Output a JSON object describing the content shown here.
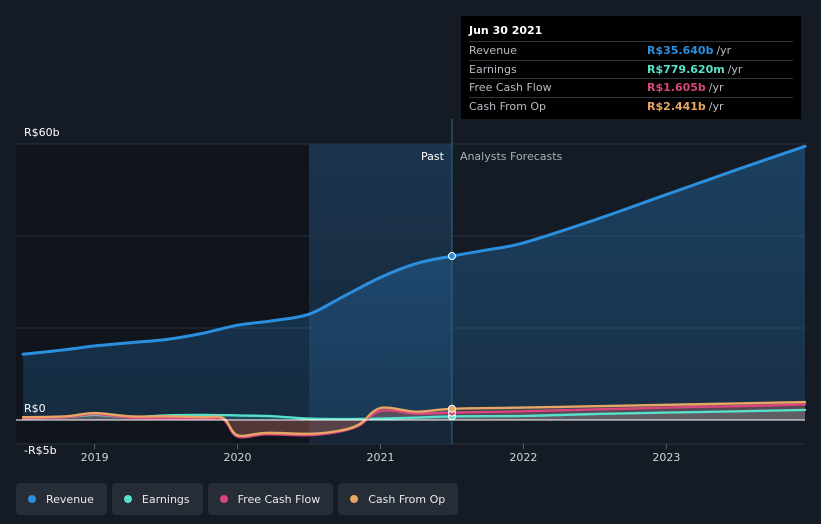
{
  "chart_data": {
    "type": "line",
    "x_unit": "year",
    "xlim": [
      2018.45,
      2023.97
    ],
    "ylim": [
      -5,
      60
    ],
    "y_ticks": [
      {
        "value": 60,
        "label": "R$60b"
      },
      {
        "value": 0,
        "label": "R$0"
      },
      {
        "value": -5,
        "label": "-R$5b"
      }
    ],
    "x_ticks": [
      "2019",
      "2020",
      "2021",
      "2022",
      "2023"
    ],
    "past_label": "Past",
    "forecast_label": "Analysts Forecasts",
    "split_x": 2021.5,
    "shaded_region_start": 2020.5,
    "series": [
      {
        "name": "Revenue",
        "color": "#2b8fe0",
        "values": [
          [
            2018.5,
            14.3
          ],
          [
            2018.8,
            15.3
          ],
          [
            2019.0,
            16.1
          ],
          [
            2019.25,
            16.8
          ],
          [
            2019.5,
            17.5
          ],
          [
            2019.75,
            18.8
          ],
          [
            2020.0,
            20.6
          ],
          [
            2020.25,
            21.6
          ],
          [
            2020.5,
            23.0
          ],
          [
            2020.75,
            27.0
          ],
          [
            2021.0,
            31.0
          ],
          [
            2021.25,
            34.0
          ],
          [
            2021.5,
            35.64
          ],
          [
            2021.75,
            37.0
          ],
          [
            2022.0,
            38.5
          ],
          [
            2022.5,
            43.5
          ],
          [
            2023.0,
            49.0
          ],
          [
            2023.5,
            54.5
          ],
          [
            2023.97,
            59.5
          ]
        ]
      },
      {
        "name": "Earnings",
        "color": "#57e0cb",
        "values": [
          [
            2018.5,
            0.4
          ],
          [
            2018.8,
            0.6
          ],
          [
            2019.0,
            1.1
          ],
          [
            2019.25,
            0.6
          ],
          [
            2019.5,
            1.0
          ],
          [
            2019.75,
            1.1
          ],
          [
            2020.0,
            1.0
          ],
          [
            2020.25,
            0.8
          ],
          [
            2020.5,
            0.3
          ],
          [
            2020.75,
            0.2
          ],
          [
            2021.0,
            0.3
          ],
          [
            2021.25,
            0.5
          ],
          [
            2021.5,
            0.78
          ],
          [
            2022.0,
            0.9
          ],
          [
            2022.5,
            1.3
          ],
          [
            2023.0,
            1.6
          ],
          [
            2023.5,
            1.9
          ],
          [
            2023.97,
            2.2
          ]
        ]
      },
      {
        "name": "Free Cash Flow",
        "color": "#d9467e",
        "values": [
          [
            2018.5,
            0.4
          ],
          [
            2018.8,
            0.6
          ],
          [
            2019.0,
            1.3
          ],
          [
            2019.25,
            0.5
          ],
          [
            2019.5,
            0.4
          ],
          [
            2019.75,
            0.3
          ],
          [
            2019.9,
            0.1
          ],
          [
            2020.0,
            -3.6
          ],
          [
            2020.2,
            -3.1
          ],
          [
            2020.5,
            -3.3
          ],
          [
            2020.7,
            -2.6
          ],
          [
            2020.85,
            -1.2
          ],
          [
            2021.0,
            2.0
          ],
          [
            2021.25,
            1.4
          ],
          [
            2021.5,
            1.605
          ],
          [
            2022.0,
            1.9
          ],
          [
            2022.5,
            2.3
          ],
          [
            2023.0,
            2.7
          ],
          [
            2023.5,
            3.0
          ],
          [
            2023.97,
            3.4
          ]
        ]
      },
      {
        "name": "Cash From Op",
        "color": "#e6a664",
        "values": [
          [
            2018.5,
            0.6
          ],
          [
            2018.8,
            0.8
          ],
          [
            2019.0,
            1.5
          ],
          [
            2019.25,
            0.8
          ],
          [
            2019.5,
            0.8
          ],
          [
            2019.75,
            0.6
          ],
          [
            2019.9,
            0.4
          ],
          [
            2020.0,
            -3.3
          ],
          [
            2020.2,
            -2.8
          ],
          [
            2020.5,
            -3.0
          ],
          [
            2020.7,
            -2.4
          ],
          [
            2020.85,
            -1.0
          ],
          [
            2021.0,
            2.6
          ],
          [
            2021.25,
            1.8
          ],
          [
            2021.5,
            2.441
          ],
          [
            2022.0,
            2.7
          ],
          [
            2022.5,
            3.0
          ],
          [
            2023.0,
            3.3
          ],
          [
            2023.5,
            3.6
          ],
          [
            2023.97,
            3.9
          ]
        ]
      }
    ]
  },
  "tooltip": {
    "date": "Jun 30 2021",
    "rows": [
      {
        "name": "Revenue",
        "value": "R$35.640b",
        "unit": "/yr",
        "color": "#2b8fe0"
      },
      {
        "name": "Earnings",
        "value": "R$779.620m",
        "unit": "/yr",
        "color": "#57e0cb"
      },
      {
        "name": "Free Cash Flow",
        "value": "R$1.605b",
        "unit": "/yr",
        "color": "#d9467e"
      },
      {
        "name": "Cash From Op",
        "value": "R$2.441b",
        "unit": "/yr",
        "color": "#e6a664"
      }
    ]
  },
  "legend": [
    {
      "label": "Revenue",
      "color": "#2b8fe0"
    },
    {
      "label": "Earnings",
      "color": "#57e0cb"
    },
    {
      "label": "Free Cash Flow",
      "color": "#d9467e"
    },
    {
      "label": "Cash From Op",
      "color": "#e6a664"
    }
  ]
}
